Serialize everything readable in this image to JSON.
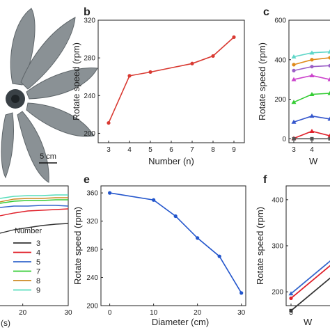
{
  "figure": {
    "scale_bar_label": "5 cm"
  },
  "chart_data": [
    {
      "panel": "b",
      "type": "line",
      "title": "",
      "xlabel": "Number (n)",
      "ylabel": "Rotate speed (rpm)",
      "xlim": [
        2.5,
        9.5
      ],
      "ylim": [
        190,
        320
      ],
      "x_ticks": [
        "3",
        "4",
        "5",
        "6",
        "7",
        "8",
        "9"
      ],
      "y_ticks": [
        "200",
        "240",
        "280",
        "320"
      ],
      "color": "#d93a32",
      "series": [
        {
          "x": [
            3,
            4,
            5,
            7,
            8,
            9
          ],
          "y": [
            211,
            261,
            265,
            274,
            282,
            302
          ]
        }
      ]
    },
    {
      "panel": "c",
      "type": "line",
      "title": "",
      "xlabel": "W",
      "ylabel": "Rotate speed (rpm)",
      "ylim": [
        -20,
        600
      ],
      "x_ticks": [
        "3",
        "4"
      ],
      "y_ticks": [
        "0",
        "200",
        "400",
        "600"
      ],
      "series": [
        {
          "color": "#5ed6c8",
          "x": [
            3,
            4,
            5
          ],
          "y": [
            415,
            435,
            440
          ]
        },
        {
          "color": "#e08a1a",
          "x": [
            3,
            4,
            5
          ],
          "y": [
            375,
            400,
            410
          ]
        },
        {
          "color": "#9b5fc6",
          "x": [
            3,
            4,
            5
          ],
          "y": [
            345,
            365,
            370
          ]
        },
        {
          "color": "#cc44cc",
          "x": [
            3,
            4,
            5
          ],
          "y": [
            300,
            320,
            300
          ]
        },
        {
          "color": "#33cc33",
          "x": [
            3,
            4,
            5
          ],
          "y": [
            185,
            225,
            230
          ]
        },
        {
          "color": "#3355cc",
          "x": [
            3,
            4,
            5
          ],
          "y": [
            85,
            115,
            100
          ]
        },
        {
          "color": "#e0202a",
          "x": [
            3,
            4,
            5
          ],
          "y": [
            2,
            38,
            15
          ]
        },
        {
          "color": "#555555",
          "x": [
            3,
            4,
            5
          ],
          "y": [
            0,
            0,
            0
          ]
        }
      ]
    },
    {
      "panel": "d",
      "type": "line",
      "title": "",
      "xlabel": "(s)",
      "legend_title": "Number",
      "x_ticks": [
        "20",
        "30"
      ],
      "series": [
        {
          "name": "3",
          "color": "#333333"
        },
        {
          "name": "4",
          "color": "#e0202a"
        },
        {
          "name": "5",
          "color": "#3366cc"
        },
        {
          "name": "7",
          "color": "#33cc33"
        },
        {
          "name": "8",
          "color": "#cc8822"
        },
        {
          "name": "9",
          "color": "#55ddbb"
        }
      ]
    },
    {
      "panel": "e",
      "type": "line",
      "title": "",
      "xlabel": "Diameter (cm)",
      "ylabel": "Rotate speed (rpm)",
      "xlim": [
        -2,
        31
      ],
      "ylim": [
        200,
        370
      ],
      "x_ticks": [
        "0",
        "10",
        "20",
        "30"
      ],
      "y_ticks": [
        "200",
        "240",
        "280",
        "320",
        "360"
      ],
      "color": "#2255cc",
      "series": [
        {
          "x": [
            0,
            10,
            15,
            20,
            25,
            30
          ],
          "y": [
            360,
            350,
            327,
            296,
            270,
            218
          ]
        }
      ]
    },
    {
      "panel": "f",
      "type": "line",
      "title": "",
      "xlabel": "W",
      "ylabel": "Rotate speed (rpm)",
      "ylim": [
        170,
        430
      ],
      "x_ticks": [
        "3"
      ],
      "y_ticks": [
        "200",
        "300",
        "400"
      ],
      "series": [
        {
          "color": "#3366cc",
          "x": [
            3
          ],
          "y": [
            196
          ]
        },
        {
          "color": "#e0202a",
          "x": [
            3
          ],
          "y": [
            186
          ]
        },
        {
          "color": "#333333",
          "x": [
            3
          ],
          "y": [
            159
          ]
        }
      ]
    }
  ]
}
